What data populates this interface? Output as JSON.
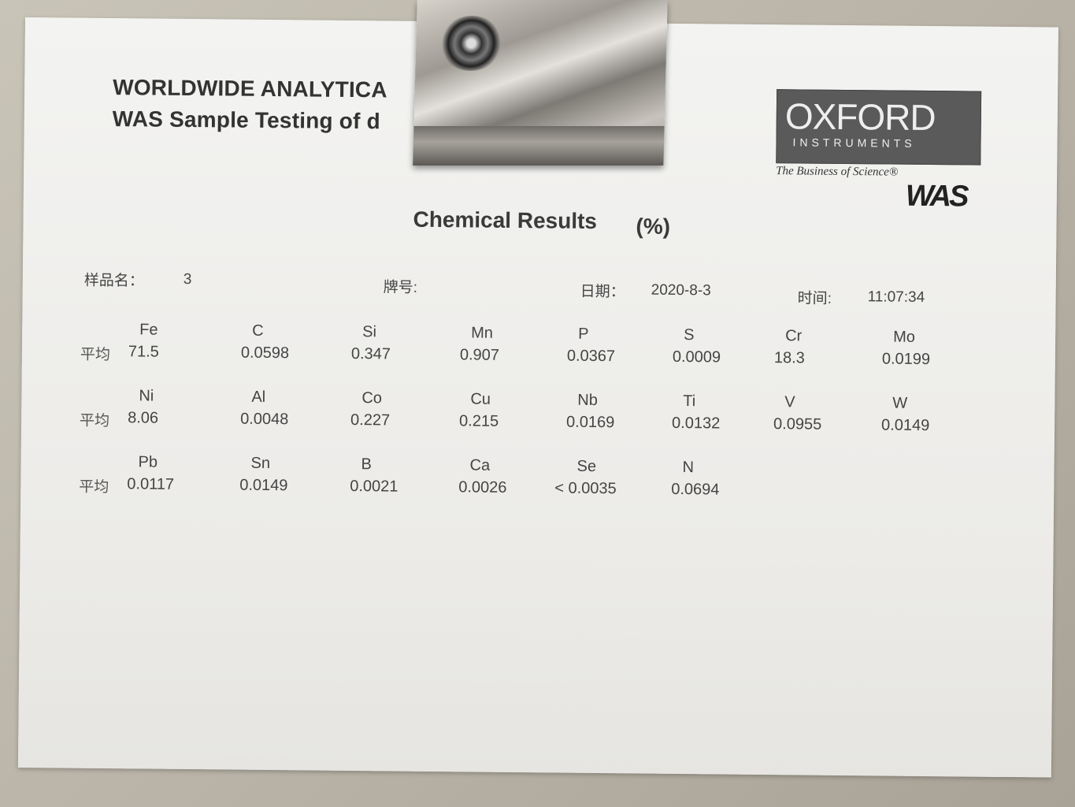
{
  "header": {
    "line1": "WORLDWIDE ANALYTICA",
    "line2": "WAS Sample Testing of d"
  },
  "logo": {
    "brand": "OXFORD",
    "sub": "INSTRUMENTS",
    "tagline": "The Business of Science®",
    "mark": "WAS"
  },
  "title": "Chemical Results",
  "unit": "(%)",
  "meta": {
    "sample_label": "样品名：",
    "sample_value": "3",
    "grade_label": "牌号:",
    "grade_value": "",
    "date_label": "日期：",
    "date_value": "2020-8-3",
    "time_label": "时间:",
    "time_value": "11:07:34"
  },
  "avg_label": "平均",
  "rows": [
    [
      {
        "el": "Fe",
        "v": "71.5"
      },
      {
        "el": "C",
        "v": "0.0598"
      },
      {
        "el": "Si",
        "v": "0.347"
      },
      {
        "el": "Mn",
        "v": "0.907"
      },
      {
        "el": "P",
        "v": "0.0367"
      },
      {
        "el": "S",
        "v": "0.0009"
      },
      {
        "el": "Cr",
        "v": "18.3"
      },
      {
        "el": "Mo",
        "v": "0.0199"
      }
    ],
    [
      {
        "el": "Ni",
        "v": "8.06"
      },
      {
        "el": "Al",
        "v": "0.0048"
      },
      {
        "el": "Co",
        "v": "0.227"
      },
      {
        "el": "Cu",
        "v": "0.215"
      },
      {
        "el": "Nb",
        "v": "0.0169"
      },
      {
        "el": "Ti",
        "v": "0.0132"
      },
      {
        "el": "V",
        "v": "0.0955"
      },
      {
        "el": "W",
        "v": "0.0149"
      }
    ],
    [
      {
        "el": "Pb",
        "v": "0.0117"
      },
      {
        "el": "Sn",
        "v": "0.0149"
      },
      {
        "el": "B",
        "v": "0.0021"
      },
      {
        "el": "Ca",
        "v": "0.0026"
      },
      {
        "el": "Se",
        "v": "< 0.0035"
      },
      {
        "el": "N",
        "v": "0.0694"
      }
    ]
  ]
}
